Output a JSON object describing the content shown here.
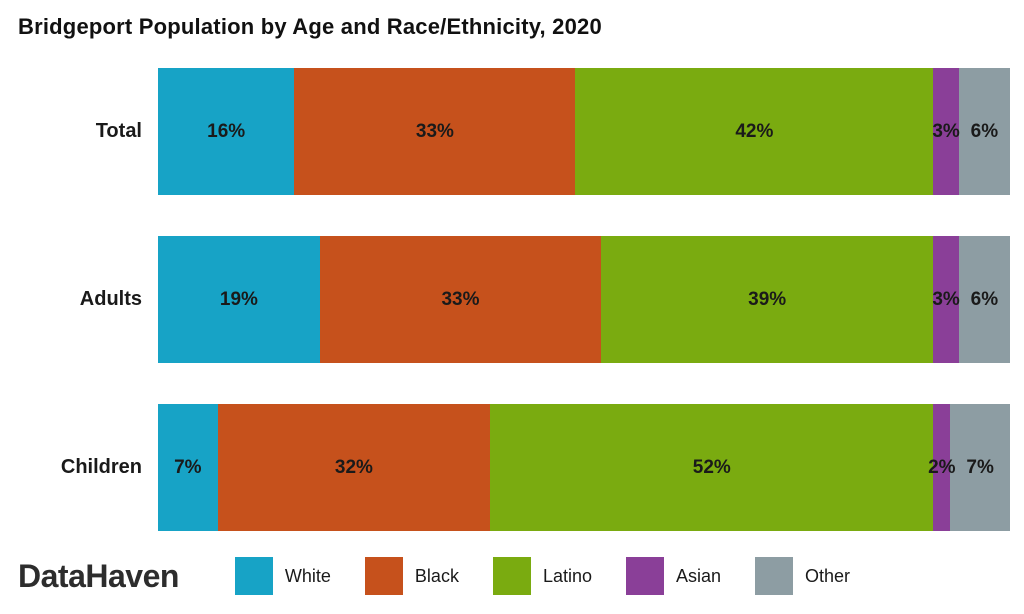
{
  "title": "Bridgeport Population by Age and Race/Ethnicity, 2020",
  "brand": "DataHaven",
  "chart_data": {
    "type": "bar",
    "orientation": "horizontal",
    "stacked": true,
    "grid": false,
    "legend_position": "bottom",
    "value_suffix": "%",
    "xlim": [
      0,
      100
    ],
    "categories": [
      "Total",
      "Adults",
      "Children"
    ],
    "series": [
      {
        "name": "White",
        "color": "#17a3c6",
        "values": [
          16,
          19,
          7
        ]
      },
      {
        "name": "Black",
        "color": "#c6511c",
        "values": [
          33,
          33,
          32
        ]
      },
      {
        "name": "Latino",
        "color": "#7aab10",
        "values": [
          42,
          39,
          52
        ]
      },
      {
        "name": "Asian",
        "color": "#8a3f98",
        "values": [
          3,
          3,
          2
        ]
      },
      {
        "name": "Other",
        "color": "#8d9da3",
        "values": [
          6,
          6,
          7
        ]
      }
    ]
  }
}
